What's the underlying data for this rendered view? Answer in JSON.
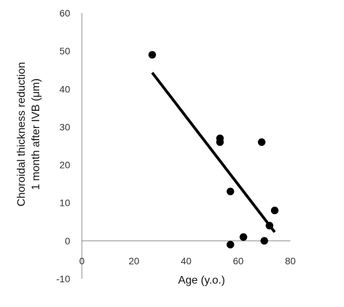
{
  "chart_data": {
    "type": "scatter",
    "xlabel": "Age (y.o.)",
    "ylabel": [
      "Choroidal thickness reduction",
      "1 month after IVB (μm)"
    ],
    "xlim": [
      0,
      80
    ],
    "ylim": [
      -10,
      60
    ],
    "x_ticks": [
      "0",
      "20",
      "40",
      "60",
      "80"
    ],
    "y_ticks": [
      "-10",
      "0",
      "10",
      "20",
      "30",
      "40",
      "50",
      "60"
    ],
    "grid": false,
    "legend": "none",
    "points": [
      {
        "x": 27,
        "y": 49
      },
      {
        "x": 53,
        "y": 27
      },
      {
        "x": 53,
        "y": 26
      },
      {
        "x": 57,
        "y": 13
      },
      {
        "x": 57,
        "y": -1
      },
      {
        "x": 62,
        "y": 1
      },
      {
        "x": 69,
        "y": 26
      },
      {
        "x": 70,
        "y": 0
      },
      {
        "x": 72,
        "y": 4
      },
      {
        "x": 74,
        "y": 8
      }
    ],
    "trendline": {
      "x1": 27,
      "y1": 44.3,
      "x2": 74,
      "y2": 2.3
    },
    "colors": {
      "points": "#000000",
      "trendline": "#000000",
      "axis": "#888888"
    }
  }
}
